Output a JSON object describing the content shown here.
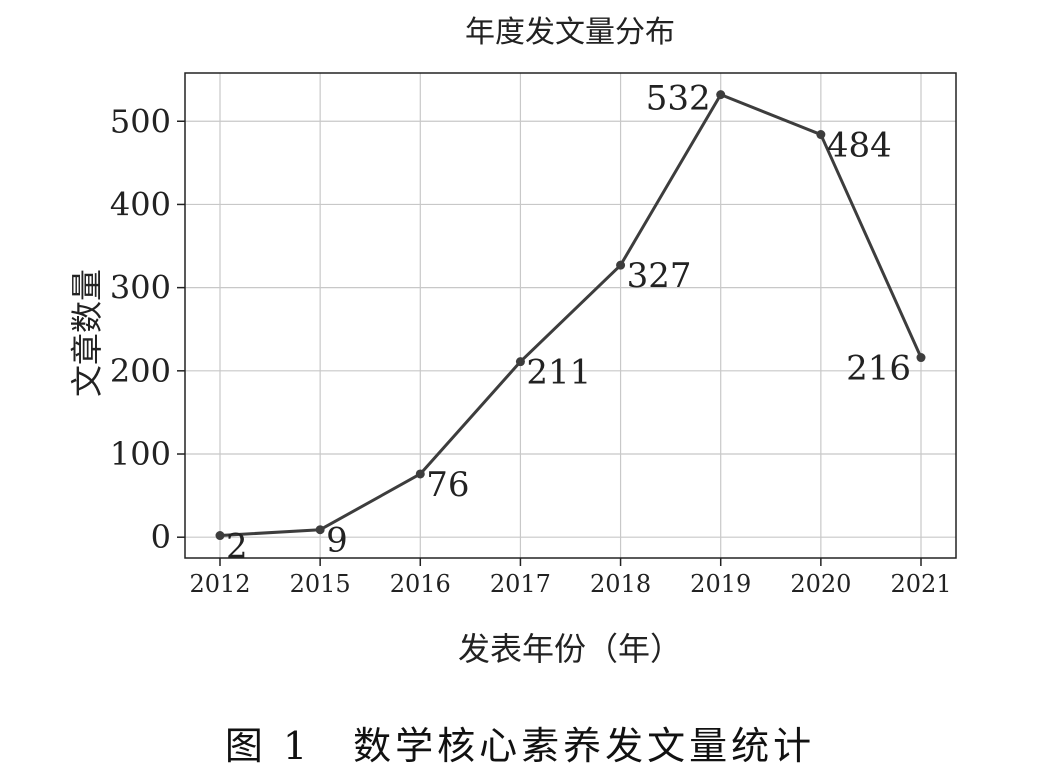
{
  "chart_data": {
    "type": "line",
    "title": "年度发文量分布",
    "xlabel": "发表年份（年）",
    "ylabel": "文章数量",
    "categories": [
      "2012",
      "2015",
      "2016",
      "2017",
      "2018",
      "2019",
      "2020",
      "2021"
    ],
    "values": [
      2,
      9,
      76,
      211,
      327,
      532,
      484,
      216
    ],
    "ylim": [
      -25,
      558
    ],
    "yticks": [
      0,
      100,
      200,
      300,
      400,
      500
    ],
    "grid": true,
    "data_labels": [
      "2",
      "9",
      "76",
      "211",
      "327",
      "532",
      "484",
      "216"
    ],
    "colors": {
      "line": "#3d3d3d",
      "grid": "#c8c8c8",
      "frame": "#222222"
    }
  },
  "caption": "图 1　数学核心素养发文量统计"
}
